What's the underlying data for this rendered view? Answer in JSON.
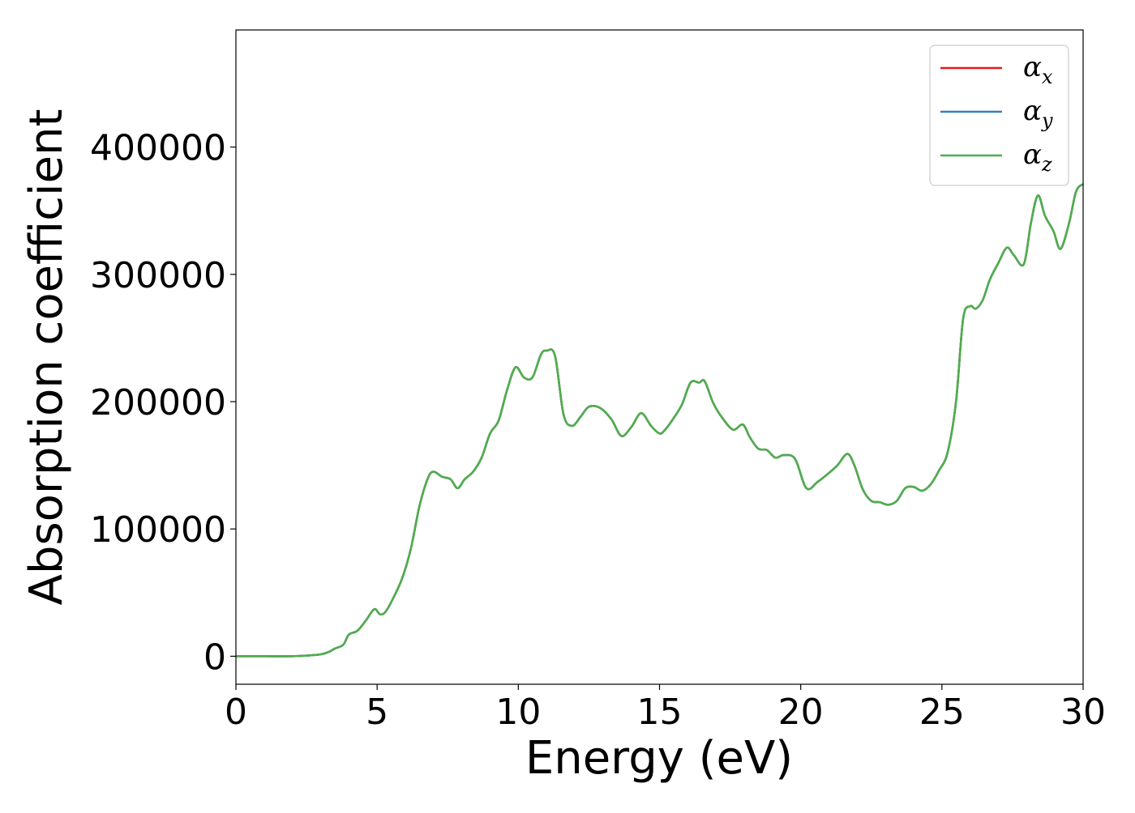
{
  "chart_data": {
    "type": "line",
    "xlabel": "Energy (eV)",
    "ylabel": "Absorption coefficient",
    "xlim": [
      0,
      30
    ],
    "ylim": [
      -22000,
      492000
    ],
    "x_ticks": [
      "0",
      "5",
      "10",
      "15",
      "20",
      "25",
      "30"
    ],
    "x_tick_values": [
      0,
      5,
      10,
      15,
      20,
      25,
      30
    ],
    "y_ticks": [
      "0",
      "100000",
      "200000",
      "300000",
      "400000"
    ],
    "y_tick_values": [
      0,
      100000,
      200000,
      300000,
      400000
    ],
    "grid": false,
    "legend_position": "top-right",
    "x": [
      0,
      1,
      2,
      2.5,
      3,
      3.3,
      3.5,
      3.8,
      4,
      4.3,
      4.6,
      4.9,
      5.1,
      5.3,
      5.6,
      5.9,
      6.2,
      6.5,
      6.8,
      7,
      7.3,
      7.6,
      7.85,
      8.1,
      8.4,
      8.7,
      9,
      9.3,
      9.6,
      9.9,
      10.2,
      10.5,
      10.8,
      11,
      11.3,
      11.6,
      11.9,
      12.2,
      12.5,
      12.9,
      13.3,
      13.65,
      14,
      14.35,
      14.7,
      15,
      15.2,
      15.5,
      15.8,
      16.1,
      16.4,
      16.6,
      16.9,
      17.2,
      17.6,
      17.95,
      18.2,
      18.5,
      18.8,
      19.1,
      19.4,
      19.8,
      20.2,
      20.6,
      21,
      21.3,
      21.65,
      21.9,
      22.2,
      22.5,
      22.8,
      23.1,
      23.4,
      23.7,
      24,
      24.3,
      24.6,
      24.9,
      25.2,
      25.5,
      25.75,
      26,
      26.2,
      26.45,
      26.7,
      27,
      27.3,
      27.55,
      27.9,
      28.15,
      28.4,
      28.65,
      28.95,
      29.2,
      29.5,
      29.75,
      30
    ],
    "series": [
      {
        "name": "α_x",
        "label_main": "α",
        "label_sub": "x",
        "color": "#e41a1c",
        "values": [
          0,
          0,
          0,
          500,
          1500,
          3500,
          6000,
          9000,
          17000,
          20000,
          28000,
          37000,
          33000,
          35000,
          47000,
          62000,
          85000,
          118000,
          140000,
          145000,
          141000,
          139000,
          132000,
          139000,
          145000,
          156000,
          175000,
          185000,
          209000,
          227000,
          219000,
          219000,
          237000,
          240000,
          236000,
          190000,
          181000,
          188000,
          196000,
          195000,
          186000,
          173000,
          180000,
          191000,
          181000,
          175000,
          178000,
          187000,
          198000,
          215000,
          215000,
          216000,
          199000,
          188000,
          178000,
          182000,
          172000,
          163000,
          162000,
          156000,
          158000,
          155000,
          132000,
          137000,
          144000,
          150000,
          159000,
          150000,
          131000,
          122000,
          121000,
          119000,
          122000,
          132000,
          133000,
          130000,
          135000,
          146000,
          160000,
          200000,
          265000,
          275000,
          273000,
          280000,
          296000,
          309000,
          321000,
          315000,
          308000,
          340000,
          362000,
          346000,
          334000,
          320000,
          340000,
          365000,
          371000
        ]
      },
      {
        "name": "α_y",
        "label_main": "α",
        "label_sub": "y",
        "color": "#377eb8",
        "values": [
          0,
          0,
          0,
          500,
          1500,
          3500,
          6000,
          9000,
          17000,
          20000,
          28000,
          37000,
          33000,
          35000,
          47000,
          62000,
          85000,
          118000,
          140000,
          145000,
          141000,
          139000,
          132000,
          139000,
          145000,
          156000,
          175000,
          185000,
          209000,
          227000,
          219000,
          219000,
          237000,
          240000,
          236000,
          190000,
          181000,
          188000,
          196000,
          195000,
          186000,
          173000,
          180000,
          191000,
          181000,
          175000,
          178000,
          187000,
          198000,
          215000,
          215000,
          216000,
          199000,
          188000,
          178000,
          182000,
          172000,
          163000,
          162000,
          156000,
          158000,
          155000,
          132000,
          137000,
          144000,
          150000,
          159000,
          150000,
          131000,
          122000,
          121000,
          119000,
          122000,
          132000,
          133000,
          130000,
          135000,
          146000,
          160000,
          200000,
          265000,
          275000,
          273000,
          280000,
          296000,
          309000,
          321000,
          315000,
          308000,
          340000,
          362000,
          346000,
          334000,
          320000,
          340000,
          365000,
          371000
        ]
      },
      {
        "name": "α_z",
        "label_main": "α",
        "label_sub": "z",
        "color": "#4daf4a",
        "values": [
          0,
          0,
          0,
          500,
          1500,
          3500,
          6000,
          9000,
          17000,
          20000,
          28000,
          37000,
          33000,
          35000,
          47000,
          62000,
          85000,
          118000,
          140000,
          145000,
          141000,
          139000,
          132000,
          139000,
          145000,
          156000,
          175000,
          185000,
          209000,
          227000,
          219000,
          219000,
          237000,
          240000,
          236000,
          190000,
          181000,
          188000,
          196000,
          195000,
          186000,
          173000,
          180000,
          191000,
          181000,
          175000,
          178000,
          187000,
          198000,
          215000,
          215000,
          216000,
          199000,
          188000,
          178000,
          182000,
          172000,
          163000,
          162000,
          156000,
          158000,
          155000,
          132000,
          137000,
          144000,
          150000,
          159000,
          150000,
          131000,
          122000,
          121000,
          119000,
          122000,
          132000,
          133000,
          130000,
          135000,
          146000,
          160000,
          200000,
          265000,
          275000,
          273000,
          280000,
          296000,
          309000,
          321000,
          315000,
          308000,
          340000,
          362000,
          346000,
          334000,
          320000,
          340000,
          365000,
          371000
        ]
      }
    ]
  }
}
